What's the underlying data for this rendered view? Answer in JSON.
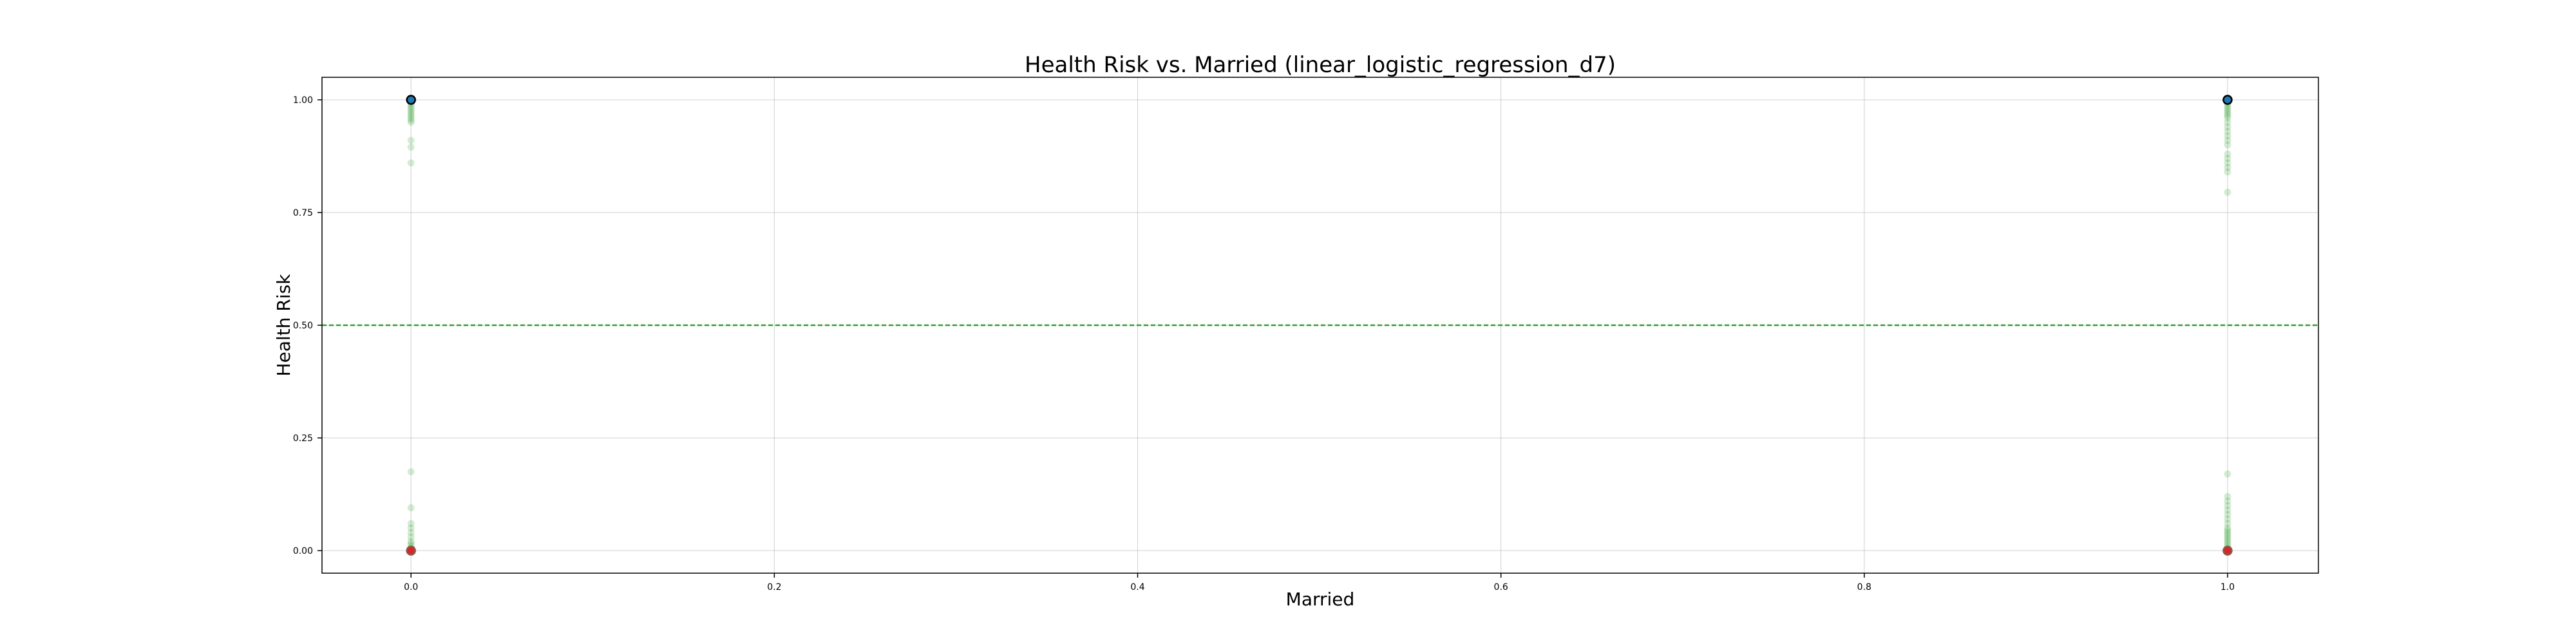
{
  "chart_data": {
    "type": "scatter",
    "title": "Health Risk vs. Married (linear_logistic_regression_d7)",
    "xlabel": "Married",
    "ylabel": "Health Risk",
    "xlim": [
      -0.049,
      1.05
    ],
    "ylim": [
      -0.05,
      1.05
    ],
    "xticks": [
      0.0,
      0.2,
      0.4,
      0.6,
      0.8,
      1.0
    ],
    "xtick_labels": [
      "0.0",
      "0.2",
      "0.4",
      "0.6",
      "0.8",
      "1.0"
    ],
    "yticks": [
      0.0,
      0.25,
      0.5,
      0.75,
      1.0
    ],
    "ytick_labels": [
      "0.00",
      "0.25",
      "0.50",
      "0.75",
      "1.00"
    ],
    "grid": true,
    "threshold": {
      "y": 0.5,
      "color": "#2ca02c",
      "style": "dashed"
    },
    "series": [
      {
        "role": "predicted probability",
        "color": "#2ca02c",
        "opacity": 0.2,
        "points": [
          [
            0,
            1.0
          ],
          [
            0,
            0.995
          ],
          [
            0,
            0.99
          ],
          [
            0,
            0.985
          ],
          [
            0,
            0.98
          ],
          [
            0,
            0.975
          ],
          [
            0,
            0.97
          ],
          [
            0,
            0.965
          ],
          [
            0,
            0.96
          ],
          [
            0,
            0.955
          ],
          [
            0,
            0.95
          ],
          [
            0,
            0.91
          ],
          [
            0,
            0.895
          ],
          [
            0,
            0.86
          ],
          [
            0,
            0.175
          ],
          [
            0,
            0.095
          ],
          [
            0,
            0.06
          ],
          [
            0,
            0.05
          ],
          [
            0,
            0.04
          ],
          [
            0,
            0.03
          ],
          [
            0,
            0.02
          ],
          [
            0,
            0.015
          ],
          [
            0,
            0.01
          ],
          [
            0,
            0.005
          ],
          [
            0,
            0.0
          ],
          [
            1,
            1.0
          ],
          [
            1,
            0.995
          ],
          [
            1,
            0.99
          ],
          [
            1,
            0.985
          ],
          [
            1,
            0.98
          ],
          [
            1,
            0.975
          ],
          [
            1,
            0.97
          ],
          [
            1,
            0.965
          ],
          [
            1,
            0.96
          ],
          [
            1,
            0.95
          ],
          [
            1,
            0.94
          ],
          [
            1,
            0.93
          ],
          [
            1,
            0.92
          ],
          [
            1,
            0.91
          ],
          [
            1,
            0.9
          ],
          [
            1,
            0.88
          ],
          [
            1,
            0.87
          ],
          [
            1,
            0.86
          ],
          [
            1,
            0.85
          ],
          [
            1,
            0.84
          ],
          [
            1,
            0.795
          ],
          [
            1,
            0.17
          ],
          [
            1,
            0.12
          ],
          [
            1,
            0.11
          ],
          [
            1,
            0.1
          ],
          [
            1,
            0.09
          ],
          [
            1,
            0.08
          ],
          [
            1,
            0.07
          ],
          [
            1,
            0.06
          ],
          [
            1,
            0.05
          ],
          [
            1,
            0.045
          ],
          [
            1,
            0.04
          ],
          [
            1,
            0.035
          ],
          [
            1,
            0.03
          ],
          [
            1,
            0.025
          ],
          [
            1,
            0.02
          ],
          [
            1,
            0.015
          ],
          [
            1,
            0.01
          ],
          [
            1,
            0.005
          ],
          [
            1,
            0.0
          ]
        ]
      },
      {
        "role": "actual positive",
        "color": "#1f77b4",
        "edge": "#000000",
        "points": [
          [
            0,
            1.0
          ],
          [
            1,
            1.0
          ]
        ]
      },
      {
        "role": "actual negative",
        "color": "#d62728",
        "edge": "#8c564b",
        "points": [
          [
            0,
            0.0
          ],
          [
            1,
            0.0
          ]
        ]
      }
    ]
  }
}
